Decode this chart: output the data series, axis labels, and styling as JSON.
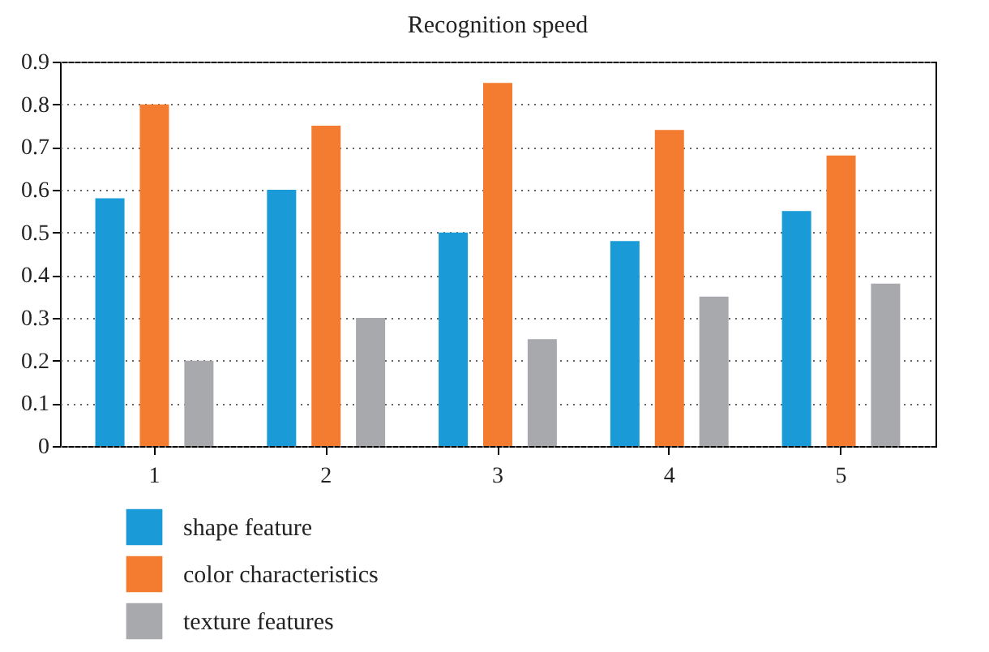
{
  "chart_data": {
    "type": "bar",
    "title": "Recognition speed",
    "categories": [
      "1",
      "2",
      "3",
      "4",
      "5"
    ],
    "series": [
      {
        "name": "shape feature",
        "color": "#1a9bd7",
        "values": [
          0.58,
          0.6,
          0.5,
          0.48,
          0.55
        ]
      },
      {
        "name": "color characteristics",
        "color": "#f47c30",
        "values": [
          0.8,
          0.75,
          0.85,
          0.74,
          0.68
        ]
      },
      {
        "name": "texture features",
        "color": "#a7a9ac",
        "values": [
          0.2,
          0.3,
          0.25,
          0.35,
          0.38
        ]
      }
    ],
    "ylim": [
      0,
      0.9
    ],
    "yticks": [
      {
        "value": 0,
        "label": "0"
      },
      0.1,
      0.2,
      0.3,
      0.4,
      0.5,
      0.6,
      0.7,
      0.8,
      0.9
    ],
    "grid": "y",
    "legend": "bottom left"
  }
}
